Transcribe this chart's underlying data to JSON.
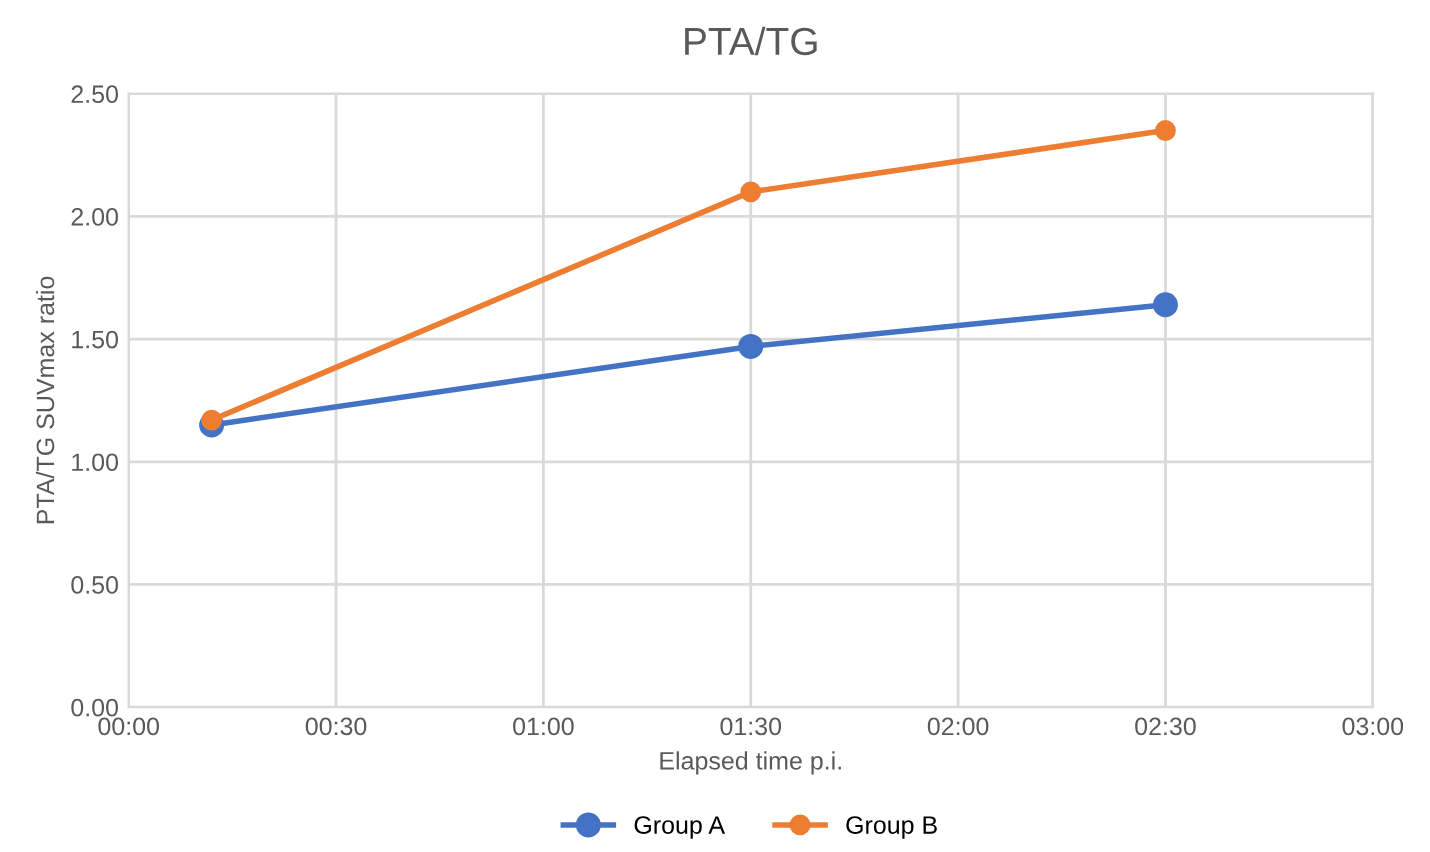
{
  "chart_data": {
    "type": "line",
    "title": "PTA/TG",
    "xlabel": "Elapsed time p.i.",
    "ylabel": "PTA/TG SUVmax ratio",
    "x": [
      0.2,
      1.5,
      2.5
    ],
    "series": [
      {
        "name": "Group A",
        "color": "#4472c4",
        "values": [
          1.15,
          1.47,
          1.64
        ]
      },
      {
        "name": "Group B",
        "color": "#ed7d31",
        "values": [
          1.17,
          2.1,
          2.35
        ]
      }
    ],
    "xlim": [
      0,
      3
    ],
    "xticks": [
      {
        "value": 0,
        "label": "00:00"
      },
      {
        "value": 0.5,
        "label": "00:30"
      },
      {
        "value": 1,
        "label": "01:00"
      },
      {
        "value": 1.5,
        "label": "01:30"
      },
      {
        "value": 2,
        "label": "02:00"
      },
      {
        "value": 2.5,
        "label": "02:30"
      },
      {
        "value": 3,
        "label": "03:00"
      }
    ],
    "ylim": [
      0,
      2.5
    ],
    "yticks": [
      {
        "value": 0,
        "label": "0.00"
      },
      {
        "value": 0.5,
        "label": "0.50"
      },
      {
        "value": 1,
        "label": "1.00"
      },
      {
        "value": 1.5,
        "label": "1.50"
      },
      {
        "value": 2,
        "label": "2.00"
      },
      {
        "value": 2.5,
        "label": "2.50"
      }
    ],
    "grid": true,
    "legend": "bottom",
    "marker": "circle",
    "line_style": "solid"
  }
}
